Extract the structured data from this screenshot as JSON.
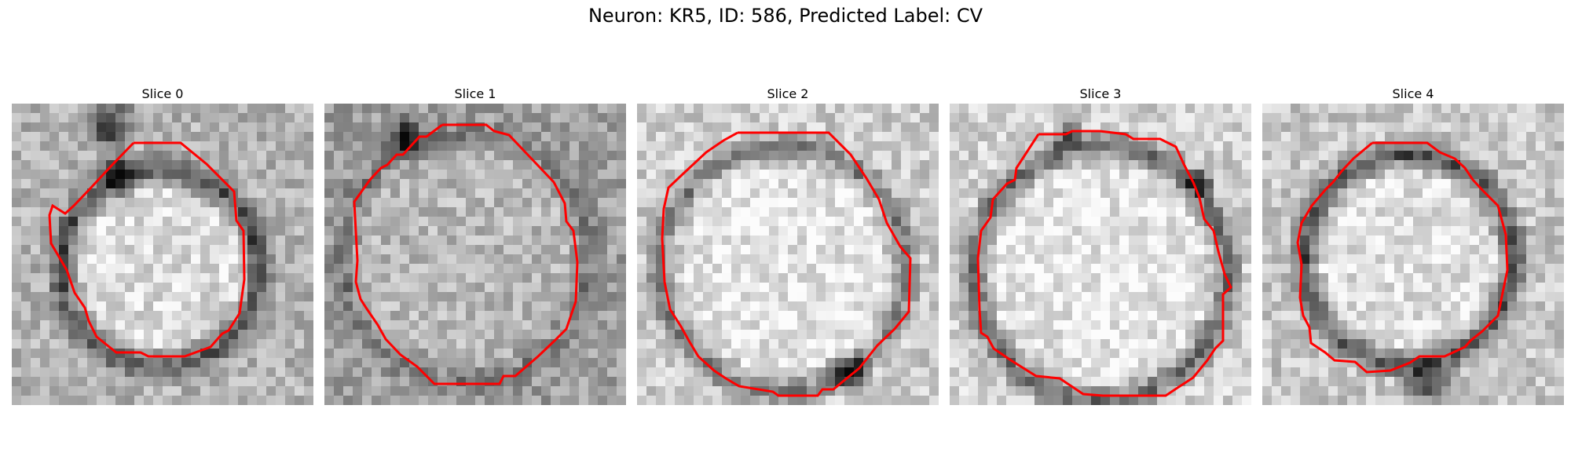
{
  "figure": {
    "title": "Neuron: KR5, ID: 586, Predicted Label: CV"
  },
  "colors": {
    "contour": "#ff0000",
    "image_dark": "#000000",
    "image_light": "#ffffff"
  },
  "panels": [
    {
      "title": "Slice 0"
    },
    {
      "title": "Slice 1"
    },
    {
      "title": "Slice 2"
    },
    {
      "title": "Slice 3"
    },
    {
      "title": "Slice 4"
    }
  ]
}
